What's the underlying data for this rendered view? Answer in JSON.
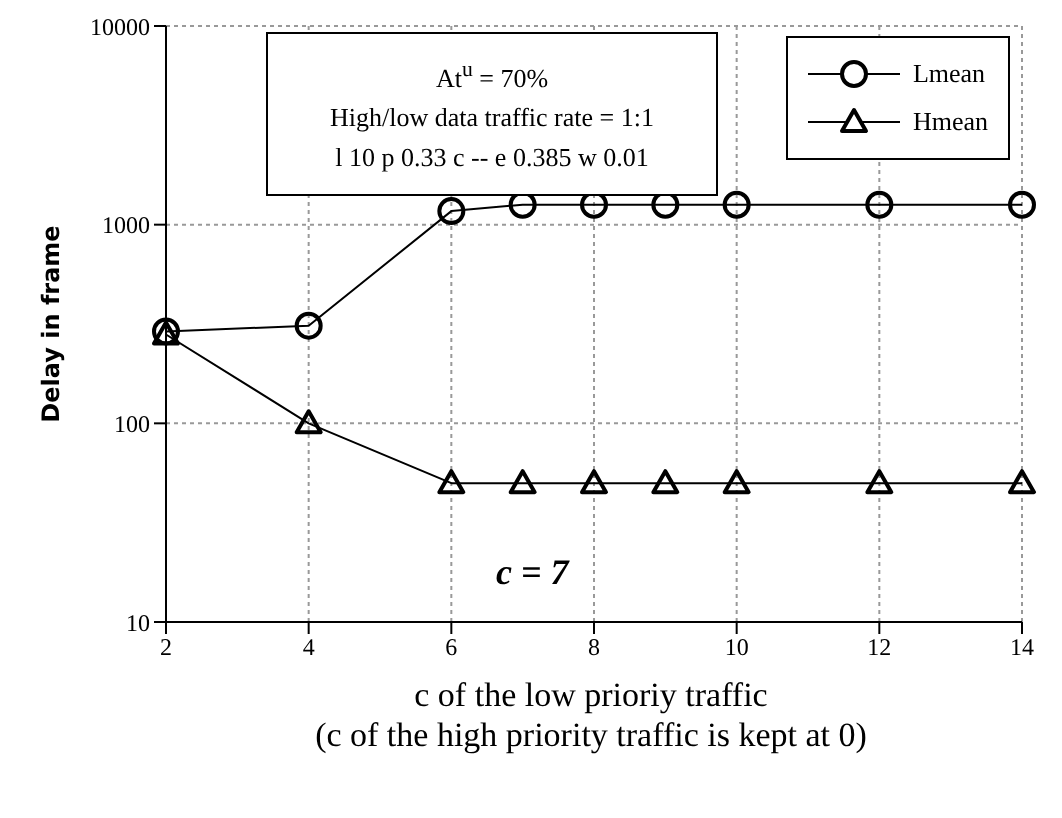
{
  "chart_data": {
    "type": "line",
    "xlabel": "c of the low prioriy traffic",
    "ylabel": "Delay in frame",
    "x": [
      2,
      4,
      6,
      7,
      8,
      9,
      10,
      12,
      14
    ],
    "series": [
      {
        "name": "Lmean",
        "color": "#000000",
        "marker": "circle",
        "values": [
          290,
          310,
          1170,
          1260,
          1260,
          1260,
          1260,
          1260,
          1260
        ]
      },
      {
        "name": "Hmean",
        "color": "#000000",
        "marker": "triangle",
        "values": [
          280,
          100,
          50,
          50,
          50,
          50,
          50,
          50,
          50
        ]
      }
    ],
    "xlim": [
      2,
      14
    ],
    "xticks": [
      2,
      4,
      6,
      8,
      10,
      12,
      14
    ],
    "ylim": [
      10,
      10000
    ],
    "yticks": [
      10,
      100,
      1000,
      10000
    ],
    "log": "y",
    "grid": true,
    "legend": "top right",
    "annotations": [
      "At$^{u}$ = 70%",
      "High/low data traffic rate = 1:1",
      "l 10 p 0.33 c -- e 0.385 w 0.01",
      "c = 7",
      "(c of the high priority traffic is kept at 0)"
    ]
  }
}
